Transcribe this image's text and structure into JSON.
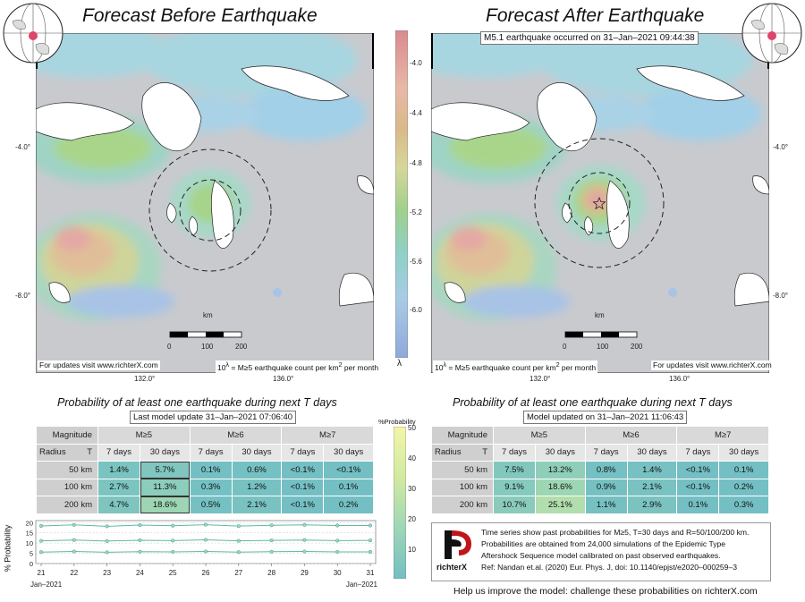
{
  "left_panel": {
    "title": "Forecast Before Earthquake",
    "footer_left": "For updates visit www.richterX.com",
    "footer_right_html": "10<sup>λ</sup> = M≥5 earthquake count per km<sup>2</sup> per month",
    "km_label": "km",
    "scale_ticks": [
      "0",
      "100",
      "200"
    ],
    "lon_ticks": [
      "132.0°",
      "136.0°"
    ],
    "lat_ticks": [
      "-4.0°",
      "-8.0°"
    ]
  },
  "right_panel": {
    "title": "Forecast After Earthquake",
    "event_label": "M5.1 earthquake occurred on 31–Jan–2021 09:44:38",
    "footer_left_html": "10<sup>λ</sup> = M≥5 earthquake count per km<sup>2</sup> per month",
    "footer_right": "For updates visit www.richterX.com",
    "km_label": "km",
    "scale_ticks": [
      "0",
      "100",
      "200"
    ],
    "lon_ticks": [
      "132.0°",
      "136.0°"
    ],
    "lat_ticks": [
      "-4.0°",
      "-8.0°"
    ]
  },
  "lambda_colorbar": {
    "ticks": [
      "-4.0",
      "-4.4",
      "-4.8",
      "-5.2",
      "-5.6",
      "-6.0"
    ],
    "label": "λ"
  },
  "prob_colorbar": {
    "title": "%Probability",
    "ticks": [
      "50",
      "40",
      "30",
      "20",
      "10"
    ]
  },
  "left_table": {
    "title": "Probability of at least one earthquake during next T days",
    "update": "Last model update 31–Jan–2021 07:06:40",
    "magnitude_label": "Magnitude",
    "radius_label": "Radius",
    "t_label": "T",
    "mags": [
      "M≥5",
      "M≥6",
      "M≥7"
    ],
    "periods": [
      "7 days",
      "30 days",
      "7 days",
      "30 days",
      "7 days",
      "30 days"
    ],
    "rows": [
      {
        "radius": "50 km",
        "values": [
          "1.4%",
          "5.7%",
          "0.1%",
          "0.6%",
          "<0.1%",
          "<0.1%"
        ]
      },
      {
        "radius": "100 km",
        "values": [
          "2.7%",
          "11.3%",
          "0.3%",
          "1.2%",
          "<0.1%",
          "0.1%"
        ]
      },
      {
        "radius": "200 km",
        "values": [
          "4.7%",
          "18.6%",
          "0.5%",
          "2.1%",
          "<0.1%",
          "0.2%"
        ]
      }
    ]
  },
  "right_table": {
    "title": "Probability of at least one earthquake during next T days",
    "update": "Model updated on 31–Jan–2021 11:06:43",
    "magnitude_label": "Magnitude",
    "radius_label": "Radius",
    "t_label": "T",
    "mags": [
      "M≥5",
      "M≥6",
      "M≥7"
    ],
    "periods": [
      "7 days",
      "30 days",
      "7 days",
      "30 days",
      "7 days",
      "30 days"
    ],
    "rows": [
      {
        "radius": "50 km",
        "values": [
          "7.5%",
          "13.2%",
          "0.8%",
          "1.4%",
          "<0.1%",
          "0.1%"
        ]
      },
      {
        "radius": "100 km",
        "values": [
          "9.1%",
          "18.6%",
          "0.9%",
          "2.1%",
          "<0.1%",
          "0.2%"
        ]
      },
      {
        "radius": "200 km",
        "values": [
          "10.7%",
          "25.1%",
          "1.1%",
          "2.9%",
          "0.1%",
          "0.3%"
        ]
      }
    ]
  },
  "chart_data": {
    "type": "line",
    "ylabel": "% Probability",
    "ylim": [
      0,
      21
    ],
    "yticks": [
      "0",
      "5",
      "10",
      "15",
      "20"
    ],
    "xticks": [
      "21",
      "22",
      "23",
      "24",
      "25",
      "26",
      "27",
      "28",
      "29",
      "30",
      "31"
    ],
    "x_start_label": "Jan–2021",
    "x_end_label": "Jan–2021",
    "series": [
      {
        "values": [
          18.4,
          18.9,
          18.2,
          18.8,
          18.5,
          19.0,
          18.3,
          18.7,
          18.9,
          18.6,
          18.6
        ]
      },
      {
        "values": [
          11.1,
          11.5,
          11.0,
          11.4,
          11.2,
          11.6,
          11.1,
          11.3,
          11.5,
          11.2,
          11.3
        ]
      },
      {
        "values": [
          5.6,
          5.9,
          5.5,
          5.8,
          5.7,
          5.9,
          5.6,
          5.8,
          5.9,
          5.7,
          5.7
        ]
      }
    ]
  },
  "info": {
    "logo_text": "richterX",
    "lines": [
      "Time series show past probabilities for M≥5, T=30 days and R=50/100/200 km.",
      "Probabilities are obtained from 24,000 simulations of the Epidemic Type",
      "Aftershock Sequence model calibrated on past observed earthquakes.",
      "Ref: Nandan et.al. (2020) Eur. Phys. J, doi: 10.1140/epjst/e2020–000259–3"
    ]
  },
  "footer": "Help us improve the model: challenge these probabilities on richterX.com"
}
